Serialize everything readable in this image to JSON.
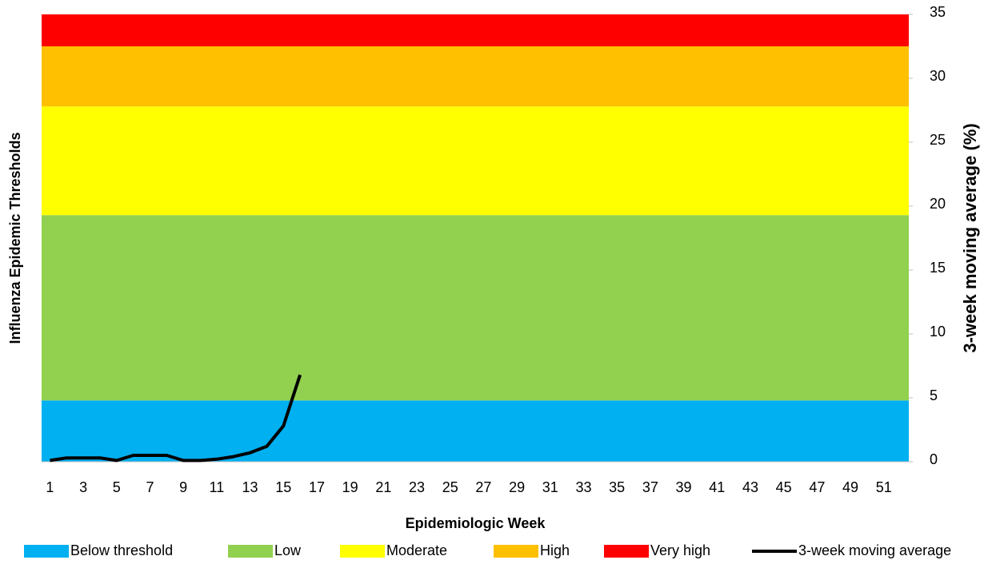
{
  "chart_data": {
    "type": "area_line",
    "y_label": "Influenza Epidemic Thresholds",
    "y2_label": "3-week moving average (%)",
    "x_label": "Epidemiologic Week",
    "categories": [
      1,
      null,
      3,
      null,
      5,
      null,
      7,
      null,
      9,
      null,
      11,
      null,
      13,
      null,
      15,
      null,
      17,
      null,
      19,
      null,
      21,
      null,
      23,
      null,
      25,
      null,
      27,
      null,
      29,
      null,
      31,
      null,
      33,
      null,
      35,
      null,
      37,
      null,
      39,
      null,
      41,
      null,
      43,
      null,
      45,
      null,
      47,
      null,
      49,
      null,
      51,
      null
    ],
    "ylim": [
      0,
      35
    ],
    "yticks": [
      0,
      5,
      10,
      15,
      20,
      25,
      30,
      35
    ],
    "axis_side": "right",
    "grid": false,
    "series": [
      {
        "name": "Below threshold",
        "color": "#00b0f0",
        "kind": "area",
        "values": [
          4.8,
          4.8,
          4.8,
          4.8,
          4.8,
          4.8,
          4.8,
          4.8,
          4.8,
          4.8,
          4.8,
          4.8,
          4.8,
          4.8,
          4.8,
          4.8,
          4.8,
          4.8,
          4.8,
          4.8,
          4.8,
          4.8,
          4.8,
          4.8,
          4.8,
          4.8,
          4.8,
          4.8,
          4.8,
          4.8,
          4.8,
          4.8,
          4.8,
          4.8,
          4.8,
          4.8,
          4.8,
          4.8,
          4.8,
          4.8,
          4.8,
          4.8,
          4.8,
          4.8,
          4.8,
          4.8,
          4.8,
          4.8,
          4.8,
          4.8,
          4.8,
          4.8
        ]
      },
      {
        "name": "Low",
        "color": "#92d050",
        "kind": "area",
        "values": [
          14.5,
          14.5,
          14.5,
          14.5,
          14.5,
          14.5,
          14.5,
          14.5,
          14.5,
          14.5,
          14.5,
          14.5,
          14.5,
          14.5,
          14.5,
          14.5,
          14.5,
          14.5,
          14.5,
          14.5,
          14.5,
          14.5,
          14.5,
          14.5,
          14.5,
          14.5,
          14.5,
          14.5,
          14.5,
          14.5,
          14.5,
          14.5,
          14.5,
          14.5,
          14.5,
          14.5,
          14.5,
          14.5,
          14.5,
          14.5,
          14.5,
          14.5,
          14.5,
          14.5,
          14.5,
          14.5,
          14.5,
          14.5,
          14.5,
          14.5,
          14.5,
          14.5
        ]
      },
      {
        "name": "Moderate",
        "color": "#ffff00",
        "kind": "area",
        "values": [
          8.5,
          8.5,
          8.5,
          8.5,
          8.5,
          8.5,
          8.5,
          8.5,
          8.5,
          8.5,
          8.5,
          8.5,
          8.5,
          8.5,
          8.5,
          8.5,
          8.5,
          8.5,
          8.5,
          8.5,
          8.5,
          8.5,
          8.5,
          8.5,
          8.5,
          8.5,
          8.5,
          8.5,
          8.5,
          8.5,
          8.5,
          8.5,
          8.5,
          8.5,
          8.5,
          8.5,
          8.5,
          8.5,
          8.5,
          8.5,
          8.5,
          8.5,
          8.5,
          8.5,
          8.5,
          8.5,
          8.5,
          8.5,
          8.5,
          8.5,
          8.5,
          8.5
        ]
      },
      {
        "name": "High",
        "color": "#ffc000",
        "kind": "area",
        "values": [
          4.7,
          4.7,
          4.7,
          4.7,
          4.7,
          4.7,
          4.7,
          4.7,
          4.7,
          4.7,
          4.7,
          4.7,
          4.7,
          4.7,
          4.7,
          4.7,
          4.7,
          4.7,
          4.7,
          4.7,
          4.7,
          4.7,
          4.7,
          4.7,
          4.7,
          4.7,
          4.7,
          4.7,
          4.7,
          4.7,
          4.7,
          4.7,
          4.7,
          4.7,
          4.7,
          4.7,
          4.7,
          4.7,
          4.7,
          4.7,
          4.7,
          4.7,
          4.7,
          4.7,
          4.7,
          4.7,
          4.7,
          4.7,
          4.7,
          4.7,
          4.7,
          4.7
        ]
      },
      {
        "name": "Very high",
        "color": "#ff0000",
        "kind": "area",
        "values": [
          2.5,
          2.5,
          2.5,
          2.5,
          2.5,
          2.5,
          2.5,
          2.5,
          2.5,
          2.5,
          2.5,
          2.5,
          2.5,
          2.5,
          2.5,
          2.5,
          2.5,
          2.5,
          2.5,
          2.5,
          2.5,
          2.5,
          2.5,
          2.5,
          2.5,
          2.5,
          2.5,
          2.5,
          2.5,
          2.5,
          2.5,
          2.5,
          2.5,
          2.5,
          2.5,
          2.5,
          2.5,
          2.5,
          2.5,
          2.5,
          2.5,
          2.5,
          2.5,
          2.5,
          2.5,
          2.5,
          2.5,
          2.5,
          2.5,
          2.5,
          2.5,
          2.5
        ]
      },
      {
        "name": "3-week moving average",
        "color": "#000000",
        "kind": "line",
        "values": [
          0.1,
          0.3,
          0.3,
          0.3,
          0.1,
          0.5,
          0.5,
          0.5,
          0.1,
          0.1,
          0.2,
          0.4,
          0.7,
          1.2,
          2.8,
          6.8,
          null,
          null,
          null,
          null,
          null,
          null,
          null,
          null,
          null,
          null,
          null,
          null,
          null,
          null,
          null,
          null,
          null,
          null,
          null,
          null,
          null,
          null,
          null,
          null,
          null,
          null,
          null,
          null,
          null,
          null,
          null,
          null,
          null,
          null,
          null,
          null
        ]
      }
    ]
  }
}
